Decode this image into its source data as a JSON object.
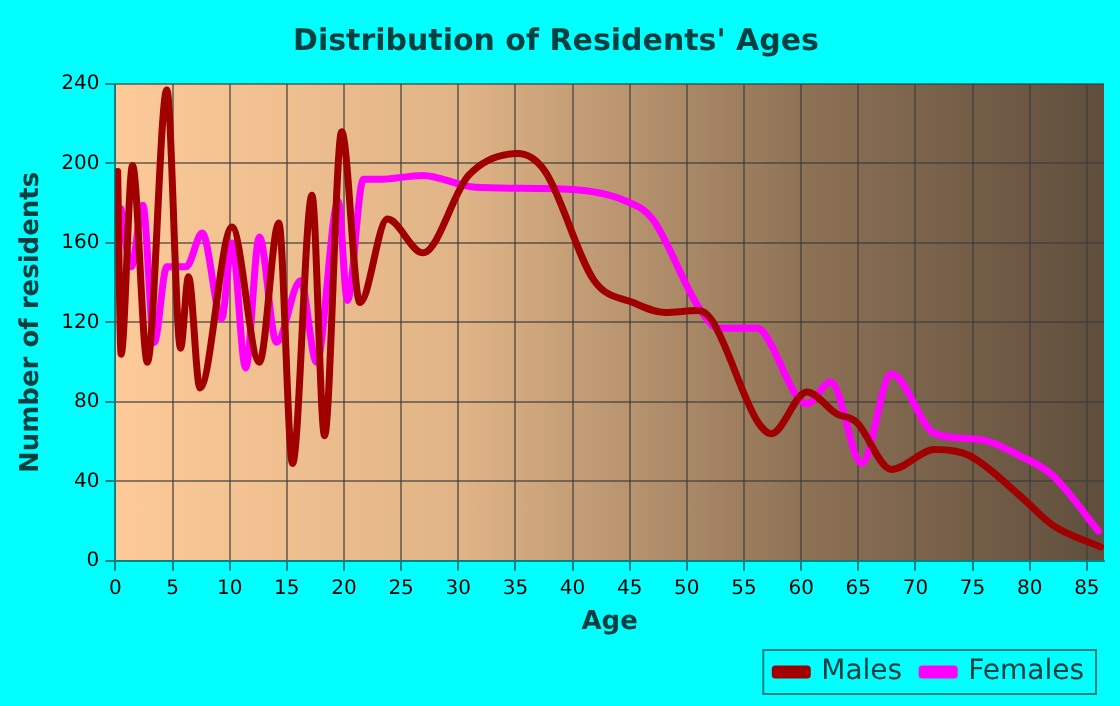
{
  "chart_data": {
    "type": "line",
    "title": "Distribution of Residents' Ages",
    "xlabel": "Age",
    "ylabel": "Number of residents",
    "xlim": [
      0,
      86.5
    ],
    "xticks": [
      0,
      5,
      10,
      15,
      20,
      25,
      30,
      35,
      40,
      45,
      50,
      55,
      60,
      65,
      70,
      75,
      80,
      85
    ],
    "ylim": [
      0,
      240
    ],
    "yticks": [
      0,
      40,
      80,
      120,
      160,
      200,
      240
    ],
    "grid": true,
    "legend": "bottom right",
    "marker": "none",
    "line_style": "solid",
    "series": [
      {
        "name": "Males",
        "color": "#a00000",
        "x": [
          0.2,
          0.5,
          1.5,
          2.8,
          4.5,
          5.7,
          6.4,
          7.4,
          10.2,
          12.6,
          14.3,
          15.5,
          17.2,
          18.3,
          19.8,
          21.4,
          23.8,
          26.9,
          30.9,
          35.2,
          37.6,
          41.9,
          45.3,
          48.1,
          51,
          52.2,
          56.2,
          57.4,
          60.5,
          63.1,
          64.8,
          67.9,
          71.7,
          74.7,
          79.1,
          82,
          86.2
        ],
        "values": [
          196,
          104,
          199,
          100,
          237,
          107,
          143,
          87,
          168,
          100,
          170,
          49,
          184,
          63,
          216,
          130,
          172,
          155,
          194,
          205,
          196,
          141,
          130,
          125,
          126,
          121,
          70,
          64,
          85,
          74,
          70,
          46,
          56,
          53,
          33,
          18,
          7
        ]
      },
      {
        "name": "Females",
        "color": "#ff00ff",
        "x": [
          0.5,
          1.4,
          2.4,
          3.4,
          4.5,
          6.2,
          7.6,
          9.3,
          10.2,
          11.4,
          12.6,
          14.1,
          16.2,
          17.6,
          19.5,
          20.3,
          21.7,
          23.1,
          26.9,
          31.5,
          39.5,
          44.7,
          47,
          51,
          52.8,
          56.2,
          56.7,
          60.5,
          62.6,
          65.3,
          67.9,
          71.7,
          75.7,
          79.1,
          82,
          86
        ],
        "values": [
          177,
          148,
          179,
          110,
          148,
          148,
          165,
          122,
          160,
          97,
          163,
          110,
          141,
          100,
          181,
          131,
          192,
          192,
          194,
          188,
          187,
          181,
          172,
          128,
          117,
          117,
          115,
          79,
          90,
          49,
          94,
          64,
          61,
          53,
          43,
          15
        ]
      }
    ]
  }
}
